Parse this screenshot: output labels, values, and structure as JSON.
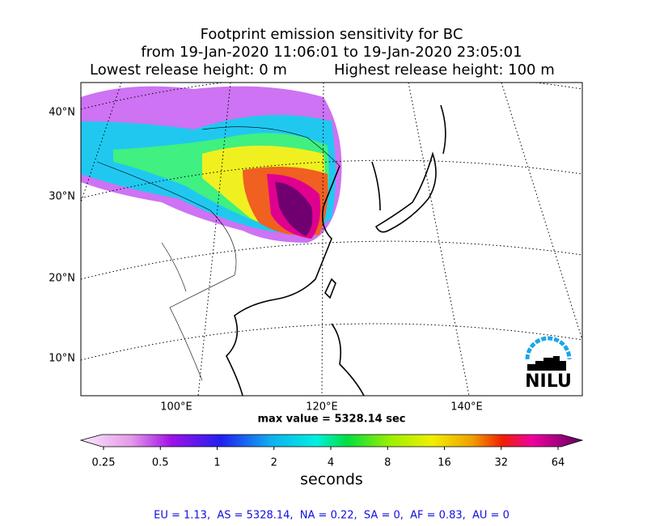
{
  "header": {
    "title": "Footprint emission sensitivity for BC",
    "period": "from 19-Jan-2020 11:06:01 to 19-Jan-2020 23:05:01",
    "lowest_height": "Lowest release height: 0 m",
    "highest_height": "Highest release height: 100 m"
  },
  "map": {
    "lat_labels": [
      "40°N",
      "30°N",
      "20°N",
      "10°N"
    ],
    "lon_labels": [
      "100°E",
      "120°E",
      "140°E"
    ],
    "logo": "NILU",
    "max_value": "max value = 5328.14 sec"
  },
  "colorbar": {
    "ticks": [
      "0.25",
      "0.5",
      "1",
      "2",
      "4",
      "8",
      "16",
      "32",
      "64"
    ],
    "label": "seconds"
  },
  "footer": {
    "stats": "EU = 1.13,  AS = 5328.14,  NA = 0.22,  SA = 0,  AF = 0.83,  AU = 0"
  }
}
